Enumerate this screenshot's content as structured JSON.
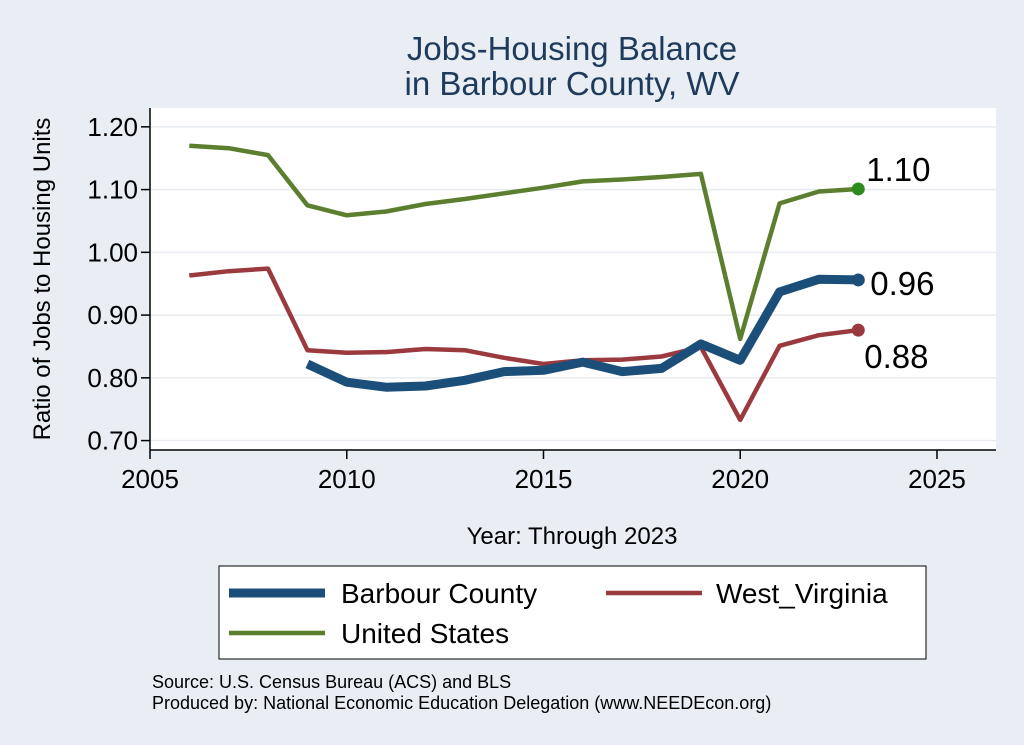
{
  "chart_data": {
    "type": "line",
    "title": [
      "Jobs-Housing Balance",
      "in Barbour County, WV"
    ],
    "xlabel": "Year: Through 2023",
    "ylabel": "Ratio of Jobs to Housing Units",
    "xlim": [
      2005,
      2026.5
    ],
    "ylim": [
      0.685,
      1.23
    ],
    "xticks": [
      2005,
      2010,
      2015,
      2020,
      2025
    ],
    "yticks": [
      0.7,
      0.8,
      0.9,
      1.0,
      1.1,
      1.2
    ],
    "ytick_labels": [
      "0.70",
      "0.80",
      "0.90",
      "1.00",
      "1.10",
      "1.20"
    ],
    "grid": "horizontal",
    "legend_position": "bottom",
    "series": [
      {
        "name": "Barbour County",
        "color": "#1b4f7a",
        "line_weight": "thick",
        "x": [
          2009,
          2010,
          2011,
          2012,
          2013,
          2014,
          2015,
          2016,
          2017,
          2018,
          2019,
          2020,
          2021,
          2022,
          2023
        ],
        "values": [
          0.822,
          0.793,
          0.785,
          0.787,
          0.796,
          0.81,
          0.812,
          0.825,
          0.81,
          0.815,
          0.854,
          0.828,
          0.937,
          0.957,
          0.956
        ],
        "end_label": "0.96"
      },
      {
        "name": "West_Virginia",
        "color": "#9b3a3e",
        "line_weight": "medium",
        "x": [
          2006,
          2007,
          2008,
          2009,
          2010,
          2011,
          2012,
          2013,
          2014,
          2015,
          2016,
          2017,
          2018,
          2019,
          2020,
          2021,
          2022,
          2023
        ],
        "values": [
          0.963,
          0.97,
          0.974,
          0.844,
          0.84,
          0.841,
          0.846,
          0.844,
          0.832,
          0.822,
          0.828,
          0.829,
          0.834,
          0.849,
          0.733,
          0.851,
          0.868,
          0.876
        ],
        "end_label": "0.88"
      },
      {
        "name": "United States",
        "color": "#5b7f2e",
        "line_weight": "medium",
        "x": [
          2006,
          2007,
          2008,
          2009,
          2010,
          2011,
          2012,
          2013,
          2014,
          2015,
          2016,
          2017,
          2018,
          2019,
          2020,
          2021,
          2022,
          2023
        ],
        "values": [
          1.17,
          1.166,
          1.155,
          1.075,
          1.059,
          1.065,
          1.077,
          1.085,
          1.094,
          1.103,
          1.113,
          1.116,
          1.12,
          1.125,
          0.862,
          1.078,
          1.097,
          1.101
        ],
        "end_label": "1.10",
        "end_marker_color": "#2e8b1f"
      }
    ]
  },
  "legend_order": [
    "Barbour County",
    "West_Virginia",
    "United States"
  ],
  "notes": [
    "Source: U.S. Census Bureau (ACS) and BLS",
    "Produced by: National Economic Education Delegation (www.NEEDEcon.org)"
  ]
}
